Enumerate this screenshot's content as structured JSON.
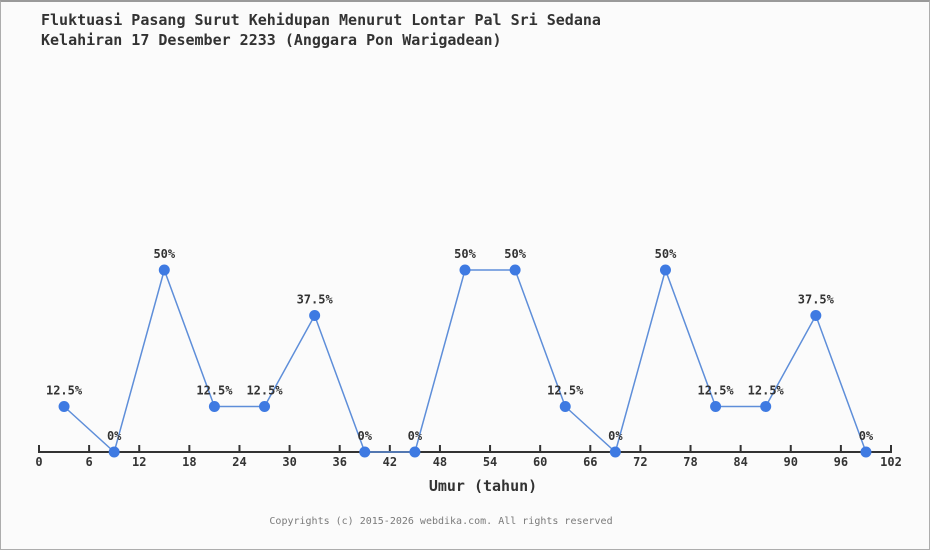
{
  "header": {
    "title_line1": "Fluktuasi Pasang Surut Kehidupan Menurut Lontar Pal Sri Sedana",
    "title_line2": "Kelahiran 17 Desember 2233 (Anggara Pon Warigadean)"
  },
  "footer": {
    "copyright": "Copyrights (c) 2015-2026 webdika.com. All rights reserved"
  },
  "chart_data": {
    "type": "line",
    "title": "Fluktuasi Pasang Surut Kehidupan Menurut Lontar Pal Sri Sedana Kelahiran 17 Desember 2233 (Anggara Pon Warigadean)",
    "xlabel": "Umur (tahun)",
    "ylabel": "",
    "x": [
      3,
      9,
      15,
      21,
      27,
      33,
      39,
      45,
      51,
      57,
      63,
      69,
      75,
      81,
      87,
      93,
      99
    ],
    "values": [
      12.5,
      0,
      50,
      12.5,
      12.5,
      37.5,
      0,
      0,
      50,
      50,
      12.5,
      0,
      50,
      12.5,
      12.5,
      37.5,
      0
    ],
    "point_labels": [
      "12.5%",
      "0%",
      "50%",
      "12.5%",
      "12.5%",
      "37.5%",
      "0%",
      "0%",
      "50%",
      "50%",
      "12.5%",
      "0%",
      "50%",
      "12.5%",
      "12.5%",
      "37.5%",
      "0%"
    ],
    "x_ticks": [
      0,
      6,
      12,
      18,
      24,
      30,
      36,
      42,
      48,
      54,
      60,
      66,
      72,
      78,
      84,
      90,
      96,
      102
    ],
    "xlim": [
      0,
      102
    ],
    "ylim": [
      0,
      50
    ],
    "grid": false,
    "legend": null,
    "colors": {
      "line": "#5e8ed9",
      "marker": "#3e7ae2",
      "axis": "#333333",
      "text": "#333333",
      "footer_text": "#7a7a7a",
      "background": "#fbfbfb"
    }
  }
}
